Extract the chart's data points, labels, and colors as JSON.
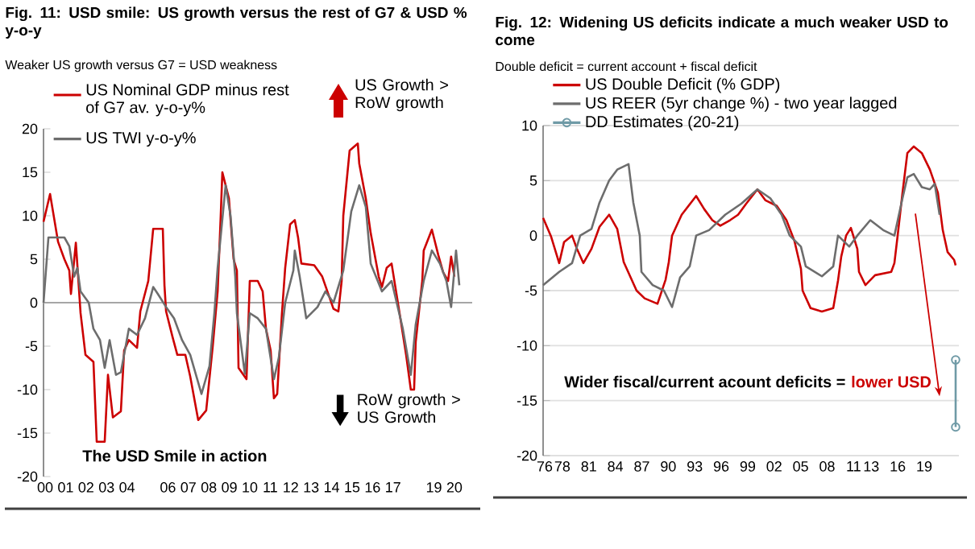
{
  "chart_data": [
    {
      "type": "line",
      "title": "Fig. 11: USD smile: US growth versus the rest of G7 & USD % y-o-y",
      "subtitle": "Weaker US growth versus G7 = USD weakness",
      "xlim": [
        1999.92,
        2020.87
      ],
      "ylim": [
        -20,
        20
      ],
      "yticks": [
        -20,
        -15,
        -10,
        -5,
        0,
        5,
        10,
        15,
        20
      ],
      "xticks": [
        {
          "value": 2000,
          "label": "00"
        },
        {
          "value": 2001,
          "label": "01"
        },
        {
          "value": 2002,
          "label": "02"
        },
        {
          "value": 2003,
          "label": "03"
        },
        {
          "value": 2004,
          "label": "04"
        },
        {
          "value": 2006,
          "label": "06"
        },
        {
          "value": 2007,
          "label": "07"
        },
        {
          "value": 2008,
          "label": "08"
        },
        {
          "value": 2009,
          "label": "09"
        },
        {
          "value": 2010,
          "label": "10"
        },
        {
          "value": 2011,
          "label": "11"
        },
        {
          "value": 2012,
          "label": "12"
        },
        {
          "value": 2013,
          "label": "13"
        },
        {
          "value": 2014,
          "label": "14"
        },
        {
          "value": 2015,
          "label": "15"
        },
        {
          "value": 2016,
          "label": "16"
        },
        {
          "value": 2017,
          "label": "17"
        },
        {
          "value": 2019,
          "label": "19"
        },
        {
          "value": 2020,
          "label": "20"
        }
      ],
      "legend": "top left",
      "ref_lines": [
        {
          "axis": "y",
          "value": 0,
          "color": "#a6a6a6"
        }
      ],
      "annotations": [
        "US Growth > RoW growth",
        "RoW growth > US Growth",
        "The USD Smile in action"
      ],
      "series": [
        {
          "name": "US Nominal GDP minus rest of G7 av. y-o-y%",
          "color": "#cc0000",
          "x": [
            1999.92,
            2000.24,
            2000.63,
            2000.94,
            2001.18,
            2001.26,
            2001.5,
            2001.73,
            2001.97,
            2002.36,
            2002.52,
            2002.91,
            2003.07,
            2003.31,
            2003.7,
            2003.86,
            2004.09,
            2004.49,
            2004.65,
            2005.04,
            2005.28,
            2005.75,
            2005.83,
            2005.91,
            2006.22,
            2006.46,
            2006.85,
            2007.09,
            2007.48,
            2007.87,
            2008.19,
            2008.43,
            2008.58,
            2008.66,
            2008.98,
            2009.21,
            2009.37,
            2009.45,
            2009.84,
            2010,
            2010.39,
            2010.63,
            2010.79,
            2011.02,
            2011.18,
            2011.34,
            2011.57,
            2011.73,
            2011.97,
            2012.2,
            2012.36,
            2012.52,
            2013.15,
            2013.54,
            2014.09,
            2014.33,
            2014.49,
            2014.57,
            2014.88,
            2015.28,
            2015.35,
            2015.67,
            2015.91,
            2016.3,
            2016.46,
            2016.69,
            2016.93,
            2017.32,
            2017.64,
            2017.87,
            2018.03,
            2018.11,
            2018.43,
            2018.5,
            2018.9,
            2019.21,
            2019.45,
            2019.69,
            2019.84,
            2020
          ],
          "values": [
            9.3,
            12.5,
            7,
            5,
            3.7,
            1,
            6.9,
            -1.2,
            -6,
            -6.8,
            -16,
            -16,
            -8.3,
            -13.2,
            -12.5,
            -5.5,
            -4.3,
            -5.2,
            -1,
            2.5,
            8.5,
            8.5,
            2,
            -1,
            -3.9,
            -6,
            -6,
            -8.5,
            -13.5,
            -12.4,
            -5,
            1.3,
            10,
            15,
            12,
            5,
            3.7,
            -7.5,
            -8.8,
            2.5,
            2.5,
            1.3,
            -3,
            -5.5,
            -11,
            -10.5,
            -1.3,
            4,
            9,
            9.5,
            7.5,
            4.5,
            4.3,
            3,
            -0.7,
            -1,
            2.5,
            10,
            17.5,
            18.3,
            16,
            12,
            8,
            3,
            1.8,
            4,
            4.5,
            -1.2,
            -6,
            -10,
            -10,
            -4.5,
            2.5,
            6,
            8.4,
            5.5,
            3.5,
            2.5,
            5.3,
            3
          ]
        },
        {
          "name": "US TWI y-o-y%",
          "color": "#6d6d6d",
          "x": [
            1999.92,
            2000.16,
            2000.94,
            2001.18,
            2001.42,
            2001.57,
            2001.73,
            2002.13,
            2002.36,
            2002.68,
            2002.91,
            2003.15,
            2003.46,
            2003.7,
            2004.09,
            2004.49,
            2004.88,
            2005.28,
            2005.51,
            2005.91,
            2006.3,
            2006.69,
            2007.09,
            2007.64,
            2008.03,
            2008.27,
            2008.43,
            2008.82,
            2009.06,
            2009.29,
            2009.37,
            2009.76,
            2010,
            2010.39,
            2010.79,
            2011.18,
            2011.42,
            2011.73,
            2012.13,
            2012.2,
            2012.44,
            2012.76,
            2013.31,
            2013.7,
            2014.09,
            2014.57,
            2014.96,
            2015.35,
            2015.67,
            2015.91,
            2016.46,
            2016.93,
            2017.48,
            2017.87,
            2018.11,
            2018.5,
            2018.9,
            2019.29,
            2019.61,
            2019.84,
            2020.08,
            2020.24
          ],
          "values": [
            0,
            7.5,
            7.5,
            6.5,
            3,
            4,
            1.3,
            0,
            -3,
            -4.3,
            -7.5,
            -4.3,
            -8.3,
            -8,
            -3,
            -3.7,
            -1.8,
            1.8,
            1,
            -0.5,
            -1.8,
            -4.3,
            -6,
            -10.5,
            -7.3,
            -1.2,
            4,
            13.5,
            10,
            3,
            -1.2,
            -8.2,
            -1.2,
            -1.8,
            -3,
            -8.8,
            -6.3,
            0,
            3.7,
            6,
            3,
            -1.8,
            -0.5,
            1.3,
            0,
            3.7,
            10.5,
            13.5,
            11,
            4.5,
            1.3,
            2.5,
            -3,
            -8.3,
            -2.5,
            2.5,
            6,
            4.5,
            2.5,
            -0.5,
            6,
            2
          ]
        }
      ]
    },
    {
      "type": "line",
      "title": "Fig. 12: Widening US deficits indicate a much weaker USD to come",
      "subtitle": "Double deficit = current account + fiscal deficit",
      "xlim": [
        1975.82,
        2022.93
      ],
      "ylim": [
        -20,
        10
      ],
      "yticks": [
        -20,
        -15,
        -10,
        -5,
        0,
        5,
        10
      ],
      "xticks": [
        {
          "value": 1976,
          "label": "76"
        },
        {
          "value": 1978,
          "label": "78"
        },
        {
          "value": 1981,
          "label": "81"
        },
        {
          "value": 1984,
          "label": "84"
        },
        {
          "value": 1987,
          "label": "87"
        },
        {
          "value": 1990,
          "label": "90"
        },
        {
          "value": 1993,
          "label": "93"
        },
        {
          "value": 1996,
          "label": "96"
        },
        {
          "value": 1999,
          "label": "99"
        },
        {
          "value": 2002,
          "label": "02"
        },
        {
          "value": 2005,
          "label": "05"
        },
        {
          "value": 2008,
          "label": "08"
        },
        {
          "value": 2011,
          "label": "11"
        },
        {
          "value": 2013,
          "label": "13"
        },
        {
          "value": 2016,
          "label": "16"
        },
        {
          "value": 2019,
          "label": "19"
        }
      ],
      "grid": "y",
      "legend": "top left",
      "annotations": [
        "Wider  fiscal/current acount deficits =",
        "lower USD"
      ],
      "series": [
        {
          "name": "US Double Deficit (% GDP)",
          "color": "#cc0000",
          "x": [
            1975.82,
            1976.73,
            1977.64,
            1978.19,
            1979.1,
            1979.65,
            1980.38,
            1981.3,
            1982.21,
            1983.3,
            1984.22,
            1984.95,
            1986.41,
            1987.32,
            1988.78,
            1989.7,
            1990.06,
            1990.43,
            1991.52,
            1993.16,
            1994.08,
            1994.99,
            1995.9,
            1997,
            1997.91,
            1998.83,
            2000.1,
            2001.02,
            2002.29,
            2003.39,
            2004.3,
            2005.03,
            2005.22,
            2006.13,
            2007.41,
            2008.69,
            2009.23,
            2009.6,
            2010.15,
            2010.69,
            2011.42,
            2011.61,
            2012.34,
            2013.43,
            2015.26,
            2015.62,
            2015.99,
            2016.54,
            2017.09,
            2017.82,
            2018.73,
            2019.64,
            2020.55,
            2021.1,
            2021.65,
            2022.38,
            2022.56
          ],
          "values": [
            1.6,
            -0.1,
            -2.5,
            -0.6,
            0,
            -1.2,
            -2.5,
            -1.2,
            0.8,
            1.9,
            0.6,
            -2.4,
            -5,
            -5.7,
            -6.2,
            -4,
            -2.4,
            0,
            1.9,
            3.6,
            2.4,
            1.4,
            0.9,
            1.4,
            1.9,
            2.9,
            4.2,
            3.2,
            2.7,
            1.4,
            -0.5,
            -3,
            -5,
            -6.6,
            -6.9,
            -6.6,
            -4.1,
            -1.9,
            0,
            0.7,
            -1.2,
            -3.3,
            -4.5,
            -3.6,
            -3.3,
            -2.5,
            0,
            3.9,
            7.5,
            8.1,
            7.5,
            6,
            3.9,
            0.5,
            -1.5,
            -2.2,
            -2.7
          ]
        },
        {
          "name": "US REER (5yr change %) - two year lagged",
          "color": "#6d6d6d",
          "x": [
            1975.82,
            1977.64,
            1979.1,
            1980.02,
            1981.3,
            1982.21,
            1983.3,
            1984.22,
            1985.5,
            1986.04,
            1986.77,
            1986.96,
            1988.23,
            1989.51,
            1990.43,
            1991.34,
            1992.43,
            1993.16,
            1994.63,
            1996.45,
            1998.28,
            2000.1,
            2001.56,
            2002.84,
            2003.76,
            2005.03,
            2005.58,
            2007.41,
            2008.69,
            2009.23,
            2010.51,
            2011.42,
            2012.89,
            2014.35,
            2015.62,
            2016.54,
            2017.09,
            2017.82,
            2018.73,
            2019.64,
            2020.19,
            2020.74
          ],
          "values": [
            -4.5,
            -3.3,
            -2.5,
            0,
            0.6,
            3,
            5,
            6,
            6.5,
            3,
            0,
            -3.3,
            -4.5,
            -5,
            -6.5,
            -3.8,
            -2.8,
            0,
            0.5,
            1.9,
            2.9,
            4.2,
            3.4,
            1.9,
            0,
            -1,
            -2.8,
            -3.7,
            -2.8,
            0,
            -1,
            0,
            1.4,
            0.5,
            0,
            3.4,
            5.3,
            5.6,
            4.4,
            4.2,
            4.7,
            1.9
          ]
        },
        {
          "name": "DD Estimates (20-21)",
          "color": "#6f9aa6",
          "marker": "circle",
          "x": [
            2022.56,
            2022.56
          ],
          "values": [
            -11.3,
            -17.4
          ]
        }
      ]
    }
  ]
}
